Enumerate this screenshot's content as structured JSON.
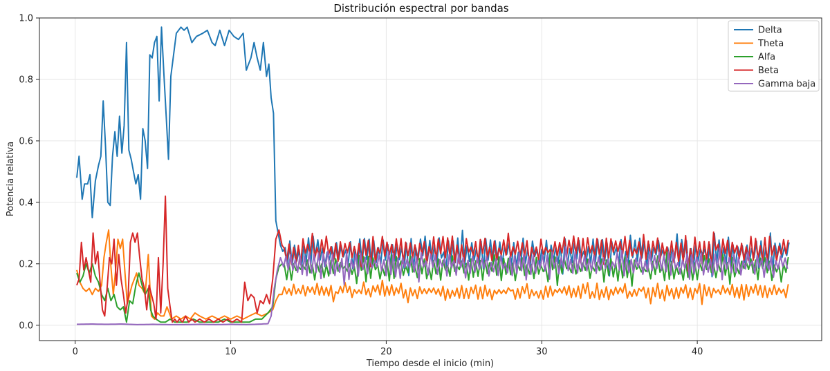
{
  "chart_data": {
    "type": "line",
    "title": "Distribución espectral por bandas",
    "xlabel": "Tiempo desde el inicio (min)",
    "ylabel": "Potencia relativa",
    "xlim": [
      -2.3,
      48
    ],
    "ylim": [
      -0.05,
      1.0
    ],
    "xticks": [
      0,
      10,
      20,
      30,
      40
    ],
    "yticks": [
      0.0,
      0.2,
      0.4,
      0.6,
      0.8,
      1.0
    ],
    "xtick_labels": [
      "0",
      "10",
      "20",
      "30",
      "40"
    ],
    "ytick_labels": [
      "0.0",
      "0.2",
      "0.4",
      "0.6",
      "0.8",
      "1.0"
    ],
    "grid": true,
    "legend_position": "top-right",
    "x_range": [
      0.1,
      45.9
    ],
    "series": [
      {
        "name": "Delta",
        "color": "#1f77b4",
        "anchors": [
          [
            0.1,
            0.48
          ],
          [
            0.25,
            0.55
          ],
          [
            0.45,
            0.41
          ],
          [
            0.6,
            0.46
          ],
          [
            0.8,
            0.46
          ],
          [
            0.95,
            0.49
          ],
          [
            1.1,
            0.35
          ],
          [
            1.3,
            0.47
          ],
          [
            1.5,
            0.52
          ],
          [
            1.65,
            0.55
          ],
          [
            1.8,
            0.73
          ],
          [
            1.95,
            0.58
          ],
          [
            2.1,
            0.4
          ],
          [
            2.25,
            0.39
          ],
          [
            2.4,
            0.55
          ],
          [
            2.55,
            0.63
          ],
          [
            2.7,
            0.55
          ],
          [
            2.85,
            0.68
          ],
          [
            3.0,
            0.56
          ],
          [
            3.15,
            0.65
          ],
          [
            3.3,
            0.92
          ],
          [
            3.45,
            0.57
          ],
          [
            3.6,
            0.54
          ],
          [
            3.75,
            0.5
          ],
          [
            3.9,
            0.46
          ],
          [
            4.05,
            0.49
          ],
          [
            4.2,
            0.41
          ],
          [
            4.35,
            0.64
          ],
          [
            4.5,
            0.6
          ],
          [
            4.65,
            0.51
          ],
          [
            4.8,
            0.88
          ],
          [
            4.95,
            0.87
          ],
          [
            5.1,
            0.92
          ],
          [
            5.25,
            0.94
          ],
          [
            5.4,
            0.73
          ],
          [
            5.55,
            0.97
          ],
          [
            5.7,
            0.82
          ],
          [
            5.85,
            0.68
          ],
          [
            6.0,
            0.54
          ],
          [
            6.15,
            0.81
          ],
          [
            6.3,
            0.87
          ],
          [
            6.5,
            0.95
          ],
          [
            6.8,
            0.97
          ],
          [
            7.0,
            0.96
          ],
          [
            7.2,
            0.97
          ],
          [
            7.5,
            0.92
          ],
          [
            7.8,
            0.94
          ],
          [
            8.2,
            0.95
          ],
          [
            8.5,
            0.96
          ],
          [
            8.8,
            0.92
          ],
          [
            9.0,
            0.91
          ],
          [
            9.3,
            0.96
          ],
          [
            9.6,
            0.91
          ],
          [
            9.9,
            0.96
          ],
          [
            10.2,
            0.94
          ],
          [
            10.5,
            0.93
          ],
          [
            10.8,
            0.95
          ],
          [
            11.0,
            0.83
          ],
          [
            11.3,
            0.87
          ],
          [
            11.5,
            0.92
          ],
          [
            11.7,
            0.87
          ],
          [
            11.9,
            0.83
          ],
          [
            12.1,
            0.92
          ],
          [
            12.3,
            0.81
          ],
          [
            12.45,
            0.85
          ],
          [
            12.6,
            0.74
          ],
          [
            12.75,
            0.69
          ],
          [
            12.9,
            0.34
          ],
          [
            13.05,
            0.3
          ],
          [
            13.2,
            0.26
          ],
          [
            13.35,
            0.24
          ]
        ],
        "noise": {
          "base": 0.235,
          "amp": 0.035,
          "jitter": 0.02,
          "seed": 11
        }
      },
      {
        "name": "Theta",
        "color": "#ff7f0e",
        "anchors": [
          [
            0.1,
            0.18
          ],
          [
            0.3,
            0.14
          ],
          [
            0.5,
            0.12
          ],
          [
            0.7,
            0.11
          ],
          [
            0.9,
            0.12
          ],
          [
            1.1,
            0.1
          ],
          [
            1.3,
            0.12
          ],
          [
            1.5,
            0.11
          ],
          [
            1.7,
            0.13
          ],
          [
            1.85,
            0.22
          ],
          [
            2.0,
            0.27
          ],
          [
            2.15,
            0.31
          ],
          [
            2.3,
            0.19
          ],
          [
            2.45,
            0.1
          ],
          [
            2.6,
            0.18
          ],
          [
            2.75,
            0.28
          ],
          [
            2.9,
            0.25
          ],
          [
            3.05,
            0.28
          ],
          [
            3.2,
            0.17
          ],
          [
            3.35,
            0.07
          ],
          [
            3.5,
            0.1
          ],
          [
            3.65,
            0.13
          ],
          [
            3.8,
            0.15
          ],
          [
            3.95,
            0.17
          ],
          [
            4.1,
            0.13
          ],
          [
            4.3,
            0.12
          ],
          [
            4.5,
            0.1
          ],
          [
            4.7,
            0.23
          ],
          [
            4.9,
            0.03
          ],
          [
            5.1,
            0.02
          ],
          [
            5.3,
            0.04
          ],
          [
            5.5,
            0.03
          ],
          [
            5.7,
            0.03
          ],
          [
            5.9,
            0.06
          ],
          [
            6.2,
            0.02
          ],
          [
            6.5,
            0.03
          ],
          [
            6.8,
            0.02
          ],
          [
            7.1,
            0.03
          ],
          [
            7.4,
            0.02
          ],
          [
            7.7,
            0.04
          ],
          [
            8.0,
            0.03
          ],
          [
            8.4,
            0.02
          ],
          [
            8.8,
            0.03
          ],
          [
            9.2,
            0.02
          ],
          [
            9.6,
            0.03
          ],
          [
            10.0,
            0.02
          ],
          [
            10.4,
            0.03
          ],
          [
            10.8,
            0.02
          ],
          [
            11.2,
            0.03
          ],
          [
            11.6,
            0.04
          ],
          [
            12.0,
            0.03
          ],
          [
            12.4,
            0.04
          ],
          [
            12.7,
            0.05
          ],
          [
            12.9,
            0.08
          ],
          [
            13.1,
            0.1
          ],
          [
            13.3,
            0.1
          ]
        ],
        "noise": {
          "base": 0.11,
          "amp": 0.018,
          "jitter": 0.012,
          "seed": 23
        }
      },
      {
        "name": "Alfa",
        "color": "#2ca02c",
        "anchors": [
          [
            0.1,
            0.17
          ],
          [
            0.3,
            0.14
          ],
          [
            0.5,
            0.16
          ],
          [
            0.7,
            0.2
          ],
          [
            0.9,
            0.17
          ],
          [
            1.1,
            0.2
          ],
          [
            1.3,
            0.16
          ],
          [
            1.5,
            0.14
          ],
          [
            1.7,
            0.1
          ],
          [
            1.9,
            0.08
          ],
          [
            2.1,
            0.12
          ],
          [
            2.3,
            0.08
          ],
          [
            2.5,
            0.1
          ],
          [
            2.7,
            0.06
          ],
          [
            2.9,
            0.05
          ],
          [
            3.1,
            0.06
          ],
          [
            3.3,
            0.01
          ],
          [
            3.5,
            0.08
          ],
          [
            3.7,
            0.07
          ],
          [
            3.9,
            0.13
          ],
          [
            4.1,
            0.17
          ],
          [
            4.3,
            0.13
          ],
          [
            4.5,
            0.1
          ],
          [
            4.7,
            0.12
          ],
          [
            4.85,
            0.05
          ],
          [
            5.0,
            0.03
          ],
          [
            5.2,
            0.02
          ],
          [
            5.5,
            0.01
          ],
          [
            5.8,
            0.01
          ],
          [
            6.1,
            0.02
          ],
          [
            6.4,
            0.01
          ],
          [
            6.8,
            0.01
          ],
          [
            7.2,
            0.01
          ],
          [
            7.6,
            0.02
          ],
          [
            8.0,
            0.01
          ],
          [
            8.4,
            0.01
          ],
          [
            8.8,
            0.01
          ],
          [
            9.2,
            0.01
          ],
          [
            9.6,
            0.02
          ],
          [
            10.0,
            0.01
          ],
          [
            10.4,
            0.01
          ],
          [
            10.8,
            0.01
          ],
          [
            11.2,
            0.01
          ],
          [
            11.6,
            0.02
          ],
          [
            12.0,
            0.02
          ],
          [
            12.4,
            0.04
          ],
          [
            12.7,
            0.06
          ],
          [
            12.9,
            0.15
          ],
          [
            13.1,
            0.19
          ],
          [
            13.3,
            0.2
          ]
        ],
        "noise": {
          "base": 0.185,
          "amp": 0.028,
          "jitter": 0.018,
          "seed": 37
        }
      },
      {
        "name": "Beta",
        "color": "#d62728",
        "anchors": [
          [
            0.1,
            0.13
          ],
          [
            0.25,
            0.15
          ],
          [
            0.4,
            0.27
          ],
          [
            0.55,
            0.18
          ],
          [
            0.7,
            0.22
          ],
          [
            0.85,
            0.18
          ],
          [
            1.0,
            0.14
          ],
          [
            1.15,
            0.3
          ],
          [
            1.3,
            0.2
          ],
          [
            1.45,
            0.24
          ],
          [
            1.6,
            0.14
          ],
          [
            1.75,
            0.05
          ],
          [
            1.9,
            0.03
          ],
          [
            2.05,
            0.12
          ],
          [
            2.2,
            0.22
          ],
          [
            2.35,
            0.2
          ],
          [
            2.5,
            0.28
          ],
          [
            2.65,
            0.13
          ],
          [
            2.8,
            0.23
          ],
          [
            2.95,
            0.15
          ],
          [
            3.1,
            0.1
          ],
          [
            3.25,
            0.04
          ],
          [
            3.4,
            0.09
          ],
          [
            3.55,
            0.27
          ],
          [
            3.7,
            0.3
          ],
          [
            3.85,
            0.27
          ],
          [
            4.0,
            0.3
          ],
          [
            4.15,
            0.22
          ],
          [
            4.3,
            0.15
          ],
          [
            4.45,
            0.12
          ],
          [
            4.6,
            0.05
          ],
          [
            4.75,
            0.13
          ],
          [
            4.9,
            0.1
          ],
          [
            5.05,
            0.07
          ],
          [
            5.2,
            0.02
          ],
          [
            5.35,
            0.22
          ],
          [
            5.5,
            0.04
          ],
          [
            5.65,
            0.2
          ],
          [
            5.8,
            0.42
          ],
          [
            5.95,
            0.12
          ],
          [
            6.1,
            0.06
          ],
          [
            6.25,
            0.01
          ],
          [
            6.4,
            0.02
          ],
          [
            6.55,
            0.01
          ],
          [
            6.7,
            0.02
          ],
          [
            6.9,
            0.01
          ],
          [
            7.1,
            0.03
          ],
          [
            7.3,
            0.01
          ],
          [
            7.5,
            0.02
          ],
          [
            7.7,
            0.01
          ],
          [
            8.0,
            0.02
          ],
          [
            8.3,
            0.01
          ],
          [
            8.6,
            0.02
          ],
          [
            8.9,
            0.01
          ],
          [
            9.2,
            0.02
          ],
          [
            9.5,
            0.01
          ],
          [
            9.8,
            0.02
          ],
          [
            10.1,
            0.01
          ],
          [
            10.4,
            0.02
          ],
          [
            10.7,
            0.01
          ],
          [
            10.9,
            0.14
          ],
          [
            11.1,
            0.08
          ],
          [
            11.3,
            0.1
          ],
          [
            11.5,
            0.09
          ],
          [
            11.7,
            0.04
          ],
          [
            11.9,
            0.08
          ],
          [
            12.1,
            0.07
          ],
          [
            12.3,
            0.1
          ],
          [
            12.5,
            0.07
          ],
          [
            12.7,
            0.15
          ],
          [
            12.9,
            0.28
          ],
          [
            13.1,
            0.31
          ],
          [
            13.3,
            0.26
          ]
        ],
        "noise": {
          "base": 0.245,
          "amp": 0.032,
          "jitter": 0.018,
          "seed": 53
        }
      },
      {
        "name": "Gamma baja",
        "color": "#9467bd",
        "anchors": [
          [
            0.1,
            0.003
          ],
          [
            1.0,
            0.004
          ],
          [
            2.0,
            0.003
          ],
          [
            3.0,
            0.004
          ],
          [
            4.0,
            0.002
          ],
          [
            5.0,
            0.003
          ],
          [
            6.0,
            0.002
          ],
          [
            7.0,
            0.002
          ],
          [
            8.0,
            0.003
          ],
          [
            9.0,
            0.002
          ],
          [
            10.0,
            0.003
          ],
          [
            11.0,
            0.002
          ],
          [
            12.0,
            0.004
          ],
          [
            12.4,
            0.005
          ],
          [
            12.6,
            0.03
          ],
          [
            12.8,
            0.12
          ],
          [
            13.0,
            0.18
          ],
          [
            13.2,
            0.22
          ],
          [
            13.4,
            0.19
          ]
        ],
        "noise": {
          "base": 0.2,
          "amp": 0.03,
          "jitter": 0.015,
          "seed": 71
        }
      }
    ]
  }
}
